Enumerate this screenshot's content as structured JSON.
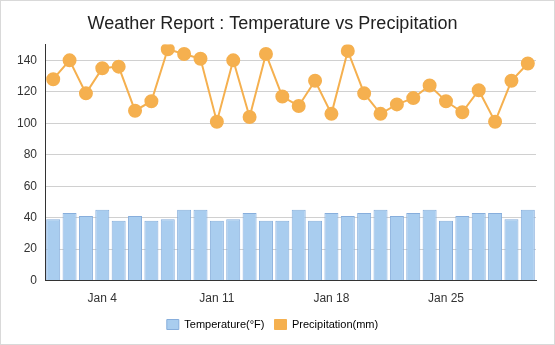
{
  "chart_data": {
    "type": "bar",
    "title": "Weather Report : Temperature vs Precipitation",
    "categories": [
      null,
      null,
      null,
      "Jan 4",
      null,
      null,
      null,
      null,
      null,
      null,
      "Jan 11",
      null,
      null,
      null,
      null,
      null,
      null,
      "Jan 18",
      null,
      null,
      null,
      null,
      null,
      null,
      "Jan 25",
      null,
      null,
      null,
      null,
      null
    ],
    "series": [
      {
        "name": "Temperature(°F)",
        "type": "bar",
        "color": "#a9cdef",
        "values": [
          39,
          43,
          41,
          45,
          38,
          41,
          38,
          39,
          45,
          45,
          38,
          39,
          43,
          38,
          38,
          45,
          38,
          43,
          41,
          43,
          45,
          41,
          43,
          45,
          38,
          41,
          43,
          43,
          39,
          45
        ]
      },
      {
        "name": "Precipitation(mm)",
        "type": "line",
        "color": "#f5b04f",
        "marker": "circle",
        "values": [
          128,
          140,
          119,
          135,
          136,
          108,
          114,
          147,
          144,
          141,
          101,
          140,
          104,
          144,
          117,
          111,
          127,
          106,
          146,
          119,
          106,
          112,
          116,
          124,
          114,
          107,
          121,
          101,
          127,
          138
        ]
      }
    ],
    "ylim": [
      0,
      150
    ],
    "yticks": [
      0,
      20,
      40,
      60,
      80,
      100,
      120,
      140
    ],
    "grid": true,
    "legend": "bottom"
  }
}
